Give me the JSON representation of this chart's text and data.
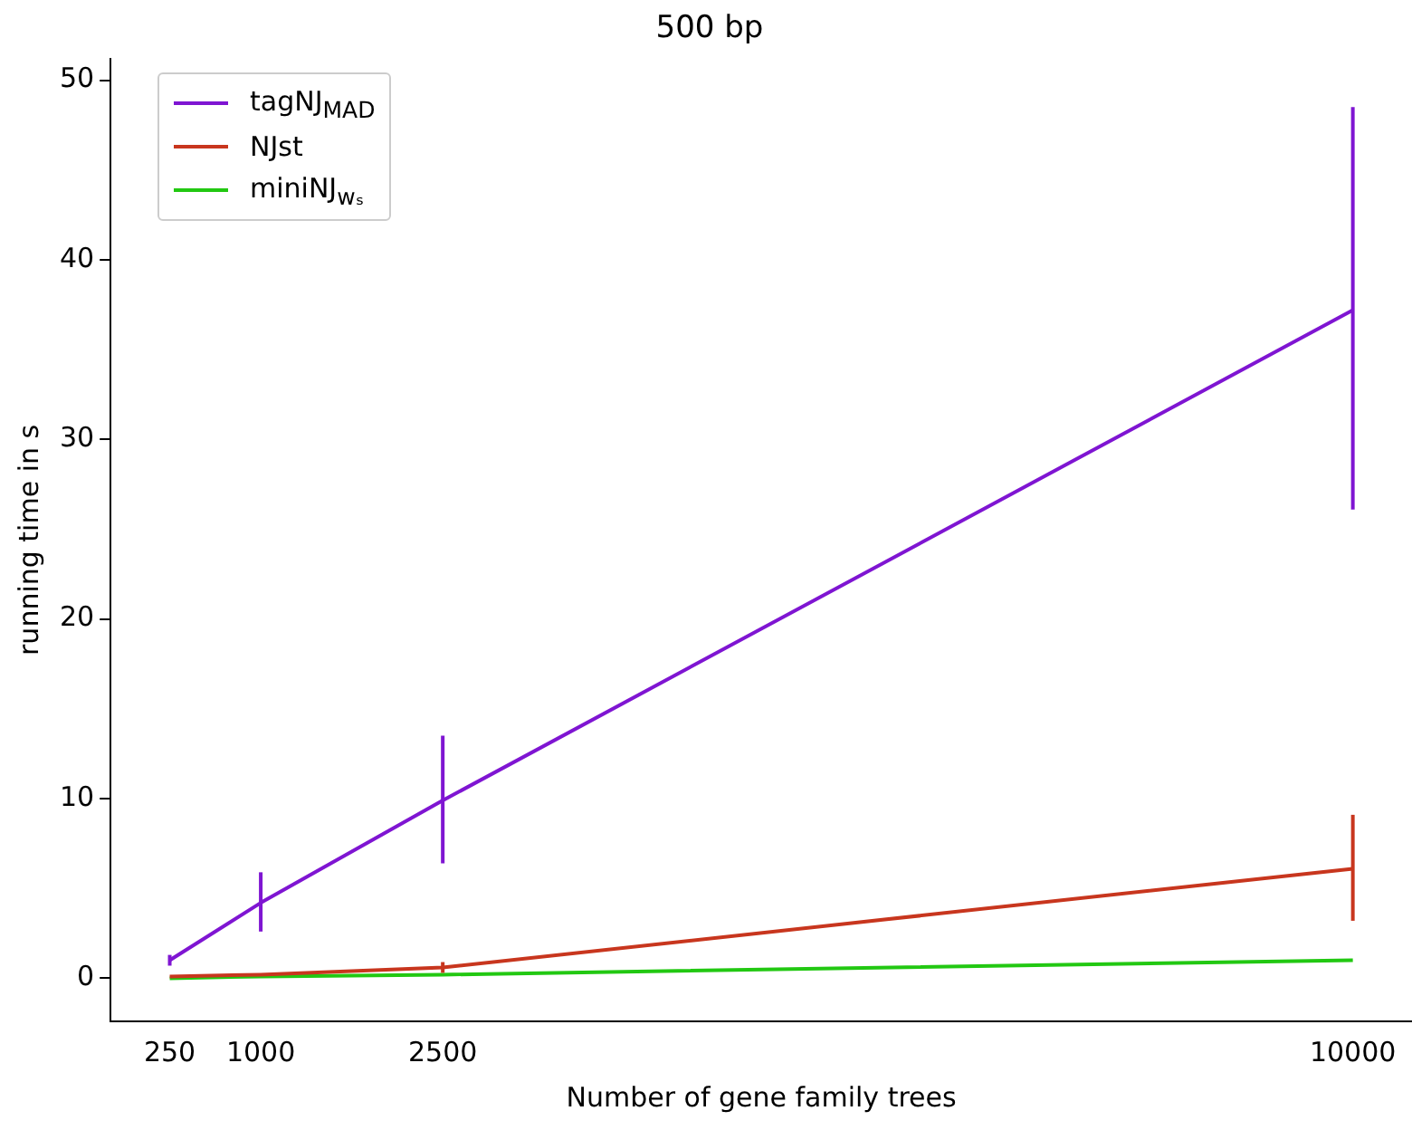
{
  "chart_data": {
    "type": "line",
    "title": "500 bp",
    "xlabel": "Number of gene family trees",
    "ylabel": "running time in s",
    "x": [
      250,
      1000,
      2500,
      10000
    ],
    "xlim": [
      -237.5,
      10487.5
    ],
    "xticks": [
      250,
      1000,
      2500,
      10000
    ],
    "ylim": [
      -2.4,
      51.2
    ],
    "yticks": [
      0,
      10,
      20,
      30,
      40,
      50
    ],
    "grid": false,
    "legend": "top left",
    "marker": "none",
    "line_style": "solid",
    "series": [
      {
        "name": "tagNJ$_{MAD}$",
        "color": "#7f15d2",
        "values": [
          1.0,
          4.2,
          9.9,
          37.2
        ],
        "errors": [
          [
            0.7,
            1.3
          ],
          [
            2.6,
            5.9
          ],
          [
            6.4,
            13.5
          ],
          [
            26.1,
            48.5
          ]
        ]
      },
      {
        "name": "NJst",
        "color": "#c8361e",
        "values": [
          0.1,
          0.2,
          0.6,
          6.1
        ],
        "errors": [
          null,
          null,
          [
            0.3,
            0.9
          ],
          [
            3.2,
            9.1
          ]
        ]
      },
      {
        "name": "miniNJ$_{wₛ}$",
        "color": "#22c812",
        "values": [
          0,
          0.1,
          0.2,
          1.0
        ],
        "errors": [
          null,
          null,
          null,
          null
        ]
      }
    ]
  }
}
